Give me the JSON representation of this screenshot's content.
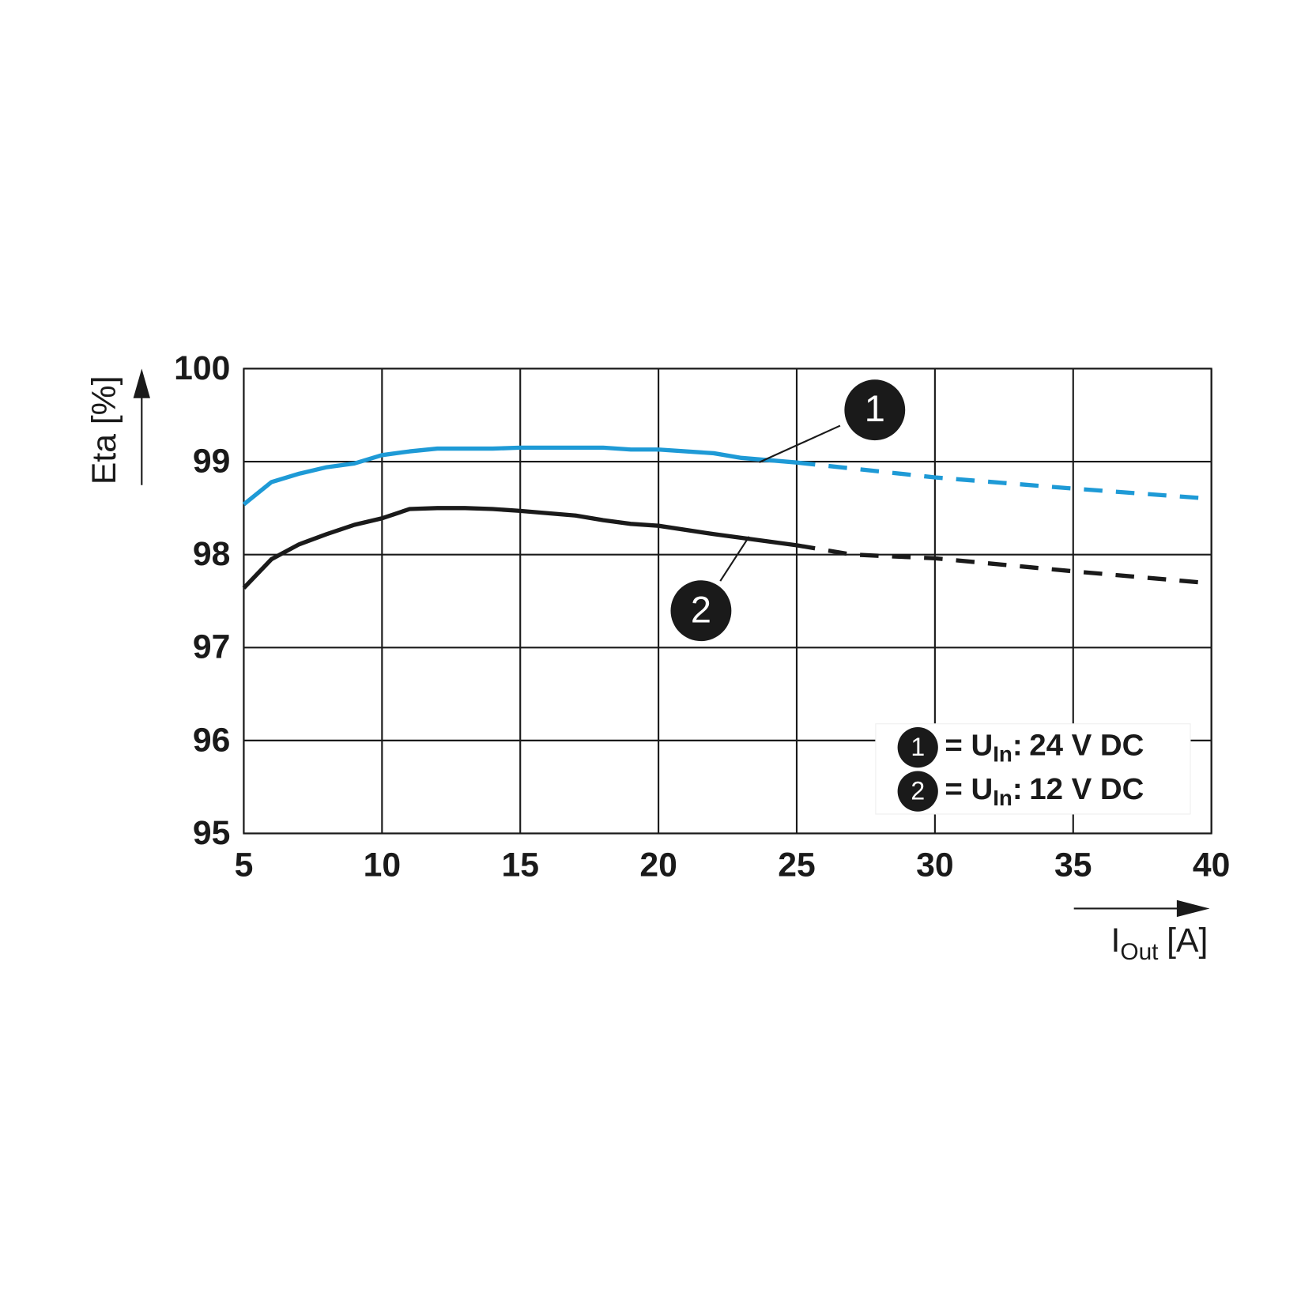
{
  "chart_data": {
    "type": "line",
    "y_label": "Eta [%]",
    "x_label": {
      "text": "I",
      "subscript": "Out",
      "unit": "[A]"
    },
    "xlim": [
      5,
      40
    ],
    "xticks": [
      5,
      10,
      15,
      20,
      25,
      30,
      35,
      40
    ],
    "ylim": [
      95,
      100
    ],
    "yticks": [
      95,
      96,
      97,
      98,
      99,
      100
    ],
    "grid": true,
    "legend_position": "lower right",
    "legend_label": {
      "prefix": "= U",
      "subscript": "In",
      "separator": ":"
    },
    "series": [
      {
        "name": "24 V DC",
        "marker": "1",
        "color": "#1e9ad6",
        "dash_from_x": 25,
        "x": [
          5,
          6,
          7,
          8,
          9,
          10,
          11,
          12,
          14,
          15,
          17,
          18,
          19,
          20,
          22,
          23,
          25,
          30,
          35,
          40
        ],
        "values": [
          98.54,
          98.78,
          98.87,
          98.94,
          98.98,
          99.07,
          99.11,
          99.14,
          99.14,
          99.15,
          99.15,
          99.15,
          99.13,
          99.13,
          99.09,
          99.04,
          98.99,
          98.83,
          98.71,
          98.6
        ]
      },
      {
        "name": "12 V DC",
        "marker": "2",
        "color": "#1a1a1a",
        "dash_from_x": 25,
        "x": [
          5,
          6,
          7,
          8,
          9,
          10,
          11,
          12,
          13,
          14,
          15,
          17,
          18,
          19,
          20,
          22,
          25,
          27,
          30,
          35,
          40
        ],
        "values": [
          97.64,
          97.95,
          98.11,
          98.22,
          98.32,
          98.39,
          98.49,
          98.5,
          98.5,
          98.49,
          98.47,
          98.42,
          98.37,
          98.33,
          98.31,
          98.22,
          98.1,
          98.0,
          97.96,
          97.82,
          97.69
        ]
      }
    ]
  }
}
